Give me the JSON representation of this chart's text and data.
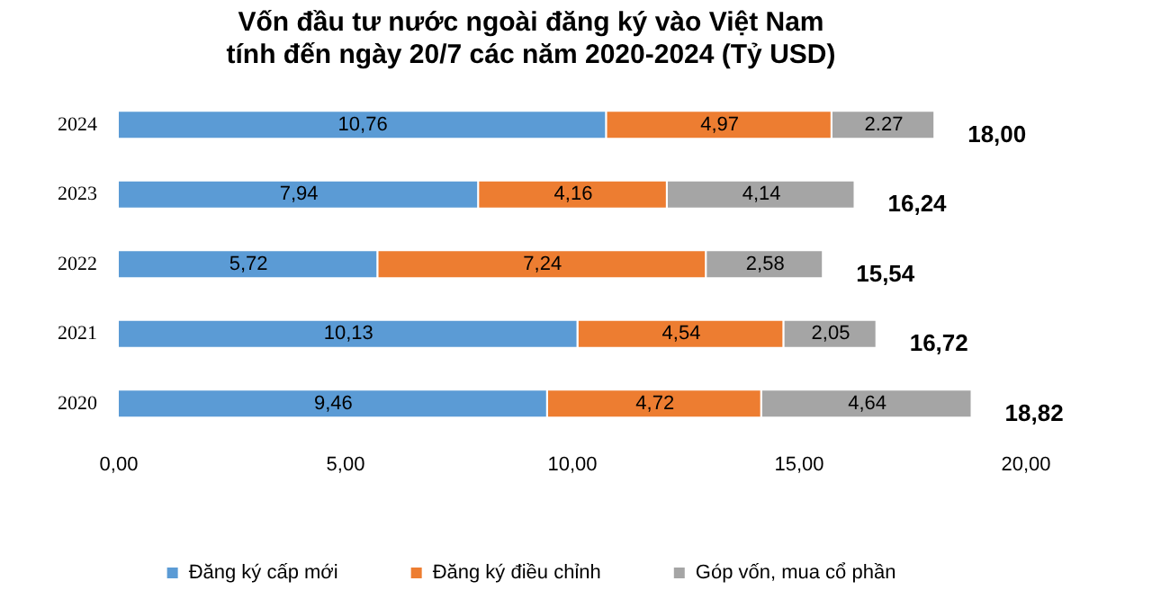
{
  "chart_data": {
    "type": "bar",
    "orientation": "horizontal",
    "stacked": true,
    "title": "Vốn đầu tư nước ngoài đăng ký vào Việt Nam\ntính đến ngày 20/7 các năm 2020-2024 (Tỷ USD)",
    "categories": [
      "2024",
      "2023",
      "2022",
      "2021",
      "2020"
    ],
    "series": [
      {
        "name": "Đăng ký cấp mới",
        "color": "#5b9bd5",
        "values": [
          10.76,
          7.94,
          5.72,
          10.13,
          9.46
        ],
        "value_labels": [
          "10,76",
          "7,94",
          "5,72",
          "10,13",
          "9,46"
        ]
      },
      {
        "name": "Đăng ký điều chỉnh",
        "color": "#ed7d31",
        "values": [
          4.97,
          4.16,
          7.24,
          4.54,
          4.72
        ],
        "value_labels": [
          "4,97",
          "4,16",
          "7,24",
          "4,54",
          "4,72"
        ]
      },
      {
        "name": "Góp vốn, mua cổ phần",
        "color": "#a5a5a5",
        "values": [
          2.27,
          4.14,
          2.58,
          2.05,
          4.64
        ],
        "value_labels": [
          "2.27",
          "4,14",
          "2,58",
          "2,05",
          "4,64"
        ]
      }
    ],
    "totals": [
      "18,00",
      "16,24",
      "15,54",
      "16,72",
      "18,82"
    ],
    "xlim": [
      0,
      20
    ],
    "xticks": [
      {
        "value": 0,
        "label": "0,00"
      },
      {
        "value": 5,
        "label": "5,00"
      },
      {
        "value": 10,
        "label": "10,00"
      },
      {
        "value": 15,
        "label": "15,00"
      },
      {
        "value": 20,
        "label": "20,00"
      }
    ],
    "grid": false,
    "legend": "bottom"
  }
}
